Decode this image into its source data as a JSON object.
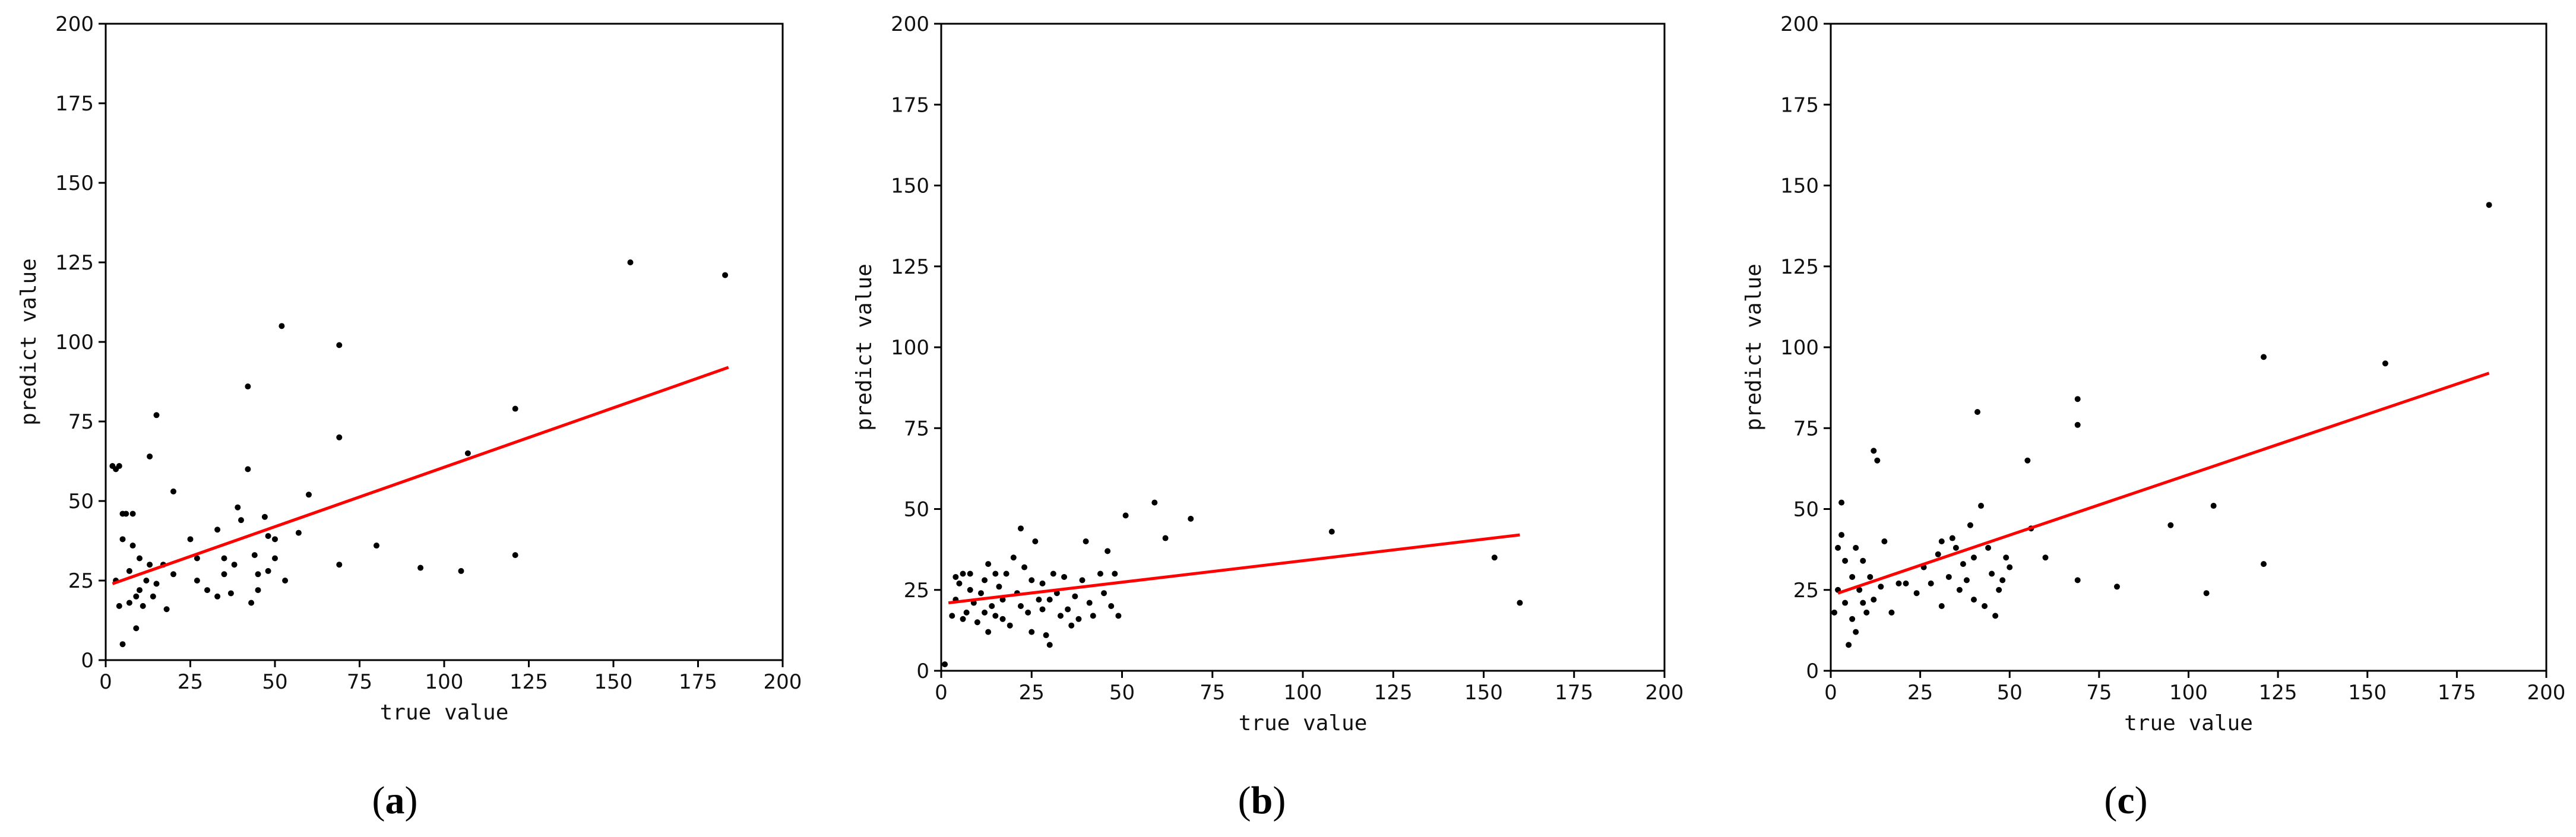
{
  "chart_data": [
    {
      "type": "scatter",
      "caption": "(a)",
      "caption_letter": "a",
      "xlabel": "true value",
      "ylabel": "predict value",
      "xlim": [
        0,
        200
      ],
      "ylim": [
        0,
        200
      ],
      "xticks": [
        0,
        25,
        50,
        75,
        100,
        125,
        150,
        175,
        200
      ],
      "yticks": [
        0,
        25,
        50,
        75,
        100,
        125,
        150,
        175,
        200
      ],
      "grid": false,
      "point_color": "#000000",
      "line_color": "#ff0000",
      "fit_line": {
        "x": [
          2,
          184
        ],
        "y": [
          24,
          92
        ]
      },
      "points": [
        [
          2,
          61
        ],
        [
          3,
          60
        ],
        [
          4,
          61
        ],
        [
          5,
          38
        ],
        [
          5,
          46
        ],
        [
          6,
          46
        ],
        [
          4,
          17
        ],
        [
          3,
          25
        ],
        [
          5,
          5
        ],
        [
          7,
          18
        ],
        [
          8,
          36
        ],
        [
          8,
          46
        ],
        [
          7,
          28
        ],
        [
          9,
          10
        ],
        [
          9,
          20
        ],
        [
          10,
          22
        ],
        [
          10,
          32
        ],
        [
          11,
          17
        ],
        [
          12,
          25
        ],
        [
          13,
          30
        ],
        [
          13,
          64
        ],
        [
          15,
          77
        ],
        [
          14,
          20
        ],
        [
          15,
          24
        ],
        [
          17,
          30
        ],
        [
          18,
          16
        ],
        [
          20,
          53
        ],
        [
          20,
          27
        ],
        [
          25,
          38
        ],
        [
          27,
          32
        ],
        [
          27,
          25
        ],
        [
          30,
          22
        ],
        [
          33,
          20
        ],
        [
          33,
          41
        ],
        [
          35,
          32
        ],
        [
          35,
          27
        ],
        [
          37,
          21
        ],
        [
          38,
          30
        ],
        [
          39,
          48
        ],
        [
          40,
          44
        ],
        [
          42,
          86
        ],
        [
          42,
          60
        ],
        [
          43,
          18
        ],
        [
          44,
          33
        ],
        [
          45,
          27
        ],
        [
          45,
          22
        ],
        [
          47,
          45
        ],
        [
          48,
          39
        ],
        [
          48,
          28
        ],
        [
          50,
          32
        ],
        [
          50,
          38
        ],
        [
          52,
          105
        ],
        [
          53,
          25
        ],
        [
          57,
          40
        ],
        [
          60,
          52
        ],
        [
          69,
          99
        ],
        [
          69,
          70
        ],
        [
          69,
          30
        ],
        [
          80,
          36
        ],
        [
          93,
          29
        ],
        [
          105,
          28
        ],
        [
          107,
          65
        ],
        [
          121,
          33
        ],
        [
          121,
          79
        ],
        [
          155,
          125
        ],
        [
          183,
          121
        ]
      ]
    },
    {
      "type": "scatter",
      "caption": "(b)",
      "caption_letter": "b",
      "xlabel": "true value",
      "ylabel": "predict value",
      "xlim": [
        0,
        200
      ],
      "ylim": [
        0,
        200
      ],
      "xticks": [
        0,
        25,
        50,
        75,
        100,
        125,
        150,
        175,
        200
      ],
      "yticks": [
        0,
        25,
        50,
        75,
        100,
        125,
        150,
        175,
        200
      ],
      "grid": false,
      "point_color": "#000000",
      "line_color": "#ff0000",
      "fit_line": {
        "x": [
          2,
          160
        ],
        "y": [
          21,
          42
        ]
      },
      "points": [
        [
          1,
          2
        ],
        [
          3,
          17
        ],
        [
          4,
          22
        ],
        [
          4,
          29
        ],
        [
          5,
          27
        ],
        [
          6,
          30
        ],
        [
          6,
          16
        ],
        [
          7,
          18
        ],
        [
          8,
          25
        ],
        [
          8,
          30
        ],
        [
          9,
          21
        ],
        [
          10,
          15
        ],
        [
          11,
          24
        ],
        [
          12,
          18
        ],
        [
          12,
          28
        ],
        [
          13,
          33
        ],
        [
          13,
          12
        ],
        [
          14,
          20
        ],
        [
          15,
          30
        ],
        [
          15,
          17
        ],
        [
          16,
          26
        ],
        [
          17,
          22
        ],
        [
          17,
          16
        ],
        [
          18,
          30
        ],
        [
          19,
          14
        ],
        [
          20,
          35
        ],
        [
          21,
          24
        ],
        [
          22,
          44
        ],
        [
          22,
          20
        ],
        [
          23,
          32
        ],
        [
          24,
          18
        ],
        [
          25,
          28
        ],
        [
          25,
          12
        ],
        [
          26,
          40
        ],
        [
          27,
          22
        ],
        [
          28,
          27
        ],
        [
          28,
          19
        ],
        [
          29,
          11
        ],
        [
          30,
          22
        ],
        [
          30,
          8
        ],
        [
          31,
          30
        ],
        [
          32,
          24
        ],
        [
          33,
          17
        ],
        [
          34,
          29
        ],
        [
          35,
          19
        ],
        [
          36,
          14
        ],
        [
          37,
          23
        ],
        [
          38,
          16
        ],
        [
          39,
          28
        ],
        [
          40,
          40
        ],
        [
          41,
          21
        ],
        [
          42,
          17
        ],
        [
          44,
          30
        ],
        [
          45,
          24
        ],
        [
          46,
          37
        ],
        [
          47,
          20
        ],
        [
          48,
          30
        ],
        [
          49,
          17
        ],
        [
          51,
          48
        ],
        [
          59,
          52
        ],
        [
          62,
          41
        ],
        [
          69,
          47
        ],
        [
          108,
          43
        ],
        [
          153,
          35
        ],
        [
          160,
          21
        ]
      ]
    },
    {
      "type": "scatter",
      "caption": "(c)",
      "caption_letter": "c",
      "xlabel": "true value",
      "ylabel": "predict value",
      "xlim": [
        0,
        200
      ],
      "ylim": [
        0,
        200
      ],
      "xticks": [
        0,
        25,
        50,
        75,
        100,
        125,
        150,
        175,
        200
      ],
      "yticks": [
        0,
        25,
        50,
        75,
        100,
        125,
        150,
        175,
        200
      ],
      "grid": false,
      "point_color": "#000000",
      "line_color": "#ff0000",
      "fit_line": {
        "x": [
          2,
          184
        ],
        "y": [
          24,
          92
        ]
      },
      "points": [
        [
          1,
          18
        ],
        [
          2,
          38
        ],
        [
          2,
          25
        ],
        [
          3,
          42
        ],
        [
          3,
          52
        ],
        [
          4,
          34
        ],
        [
          4,
          21
        ],
        [
          5,
          8
        ],
        [
          6,
          29
        ],
        [
          6,
          16
        ],
        [
          7,
          38
        ],
        [
          7,
          12
        ],
        [
          8,
          25
        ],
        [
          9,
          21
        ],
        [
          9,
          34
        ],
        [
          10,
          18
        ],
        [
          11,
          29
        ],
        [
          12,
          22
        ],
        [
          12,
          68
        ],
        [
          13,
          65
        ],
        [
          14,
          26
        ],
        [
          15,
          40
        ],
        [
          17,
          18
        ],
        [
          19,
          27
        ],
        [
          21,
          27
        ],
        [
          24,
          24
        ],
        [
          26,
          32
        ],
        [
          28,
          27
        ],
        [
          30,
          36
        ],
        [
          31,
          20
        ],
        [
          31,
          40
        ],
        [
          33,
          29
        ],
        [
          34,
          41
        ],
        [
          35,
          38
        ],
        [
          36,
          25
        ],
        [
          37,
          33
        ],
        [
          38,
          28
        ],
        [
          39,
          45
        ],
        [
          40,
          22
        ],
        [
          40,
          35
        ],
        [
          41,
          80
        ],
        [
          42,
          51
        ],
        [
          43,
          20
        ],
        [
          44,
          38
        ],
        [
          45,
          30
        ],
        [
          46,
          17
        ],
        [
          47,
          25
        ],
        [
          48,
          28
        ],
        [
          49,
          35
        ],
        [
          50,
          32
        ],
        [
          55,
          65
        ],
        [
          56,
          44
        ],
        [
          60,
          35
        ],
        [
          69,
          76
        ],
        [
          69,
          84
        ],
        [
          69,
          28
        ],
        [
          80,
          26
        ],
        [
          95,
          45
        ],
        [
          105,
          24
        ],
        [
          107,
          51
        ],
        [
          121,
          33
        ],
        [
          121,
          97
        ],
        [
          155,
          95
        ],
        [
          184,
          144
        ]
      ]
    }
  ]
}
